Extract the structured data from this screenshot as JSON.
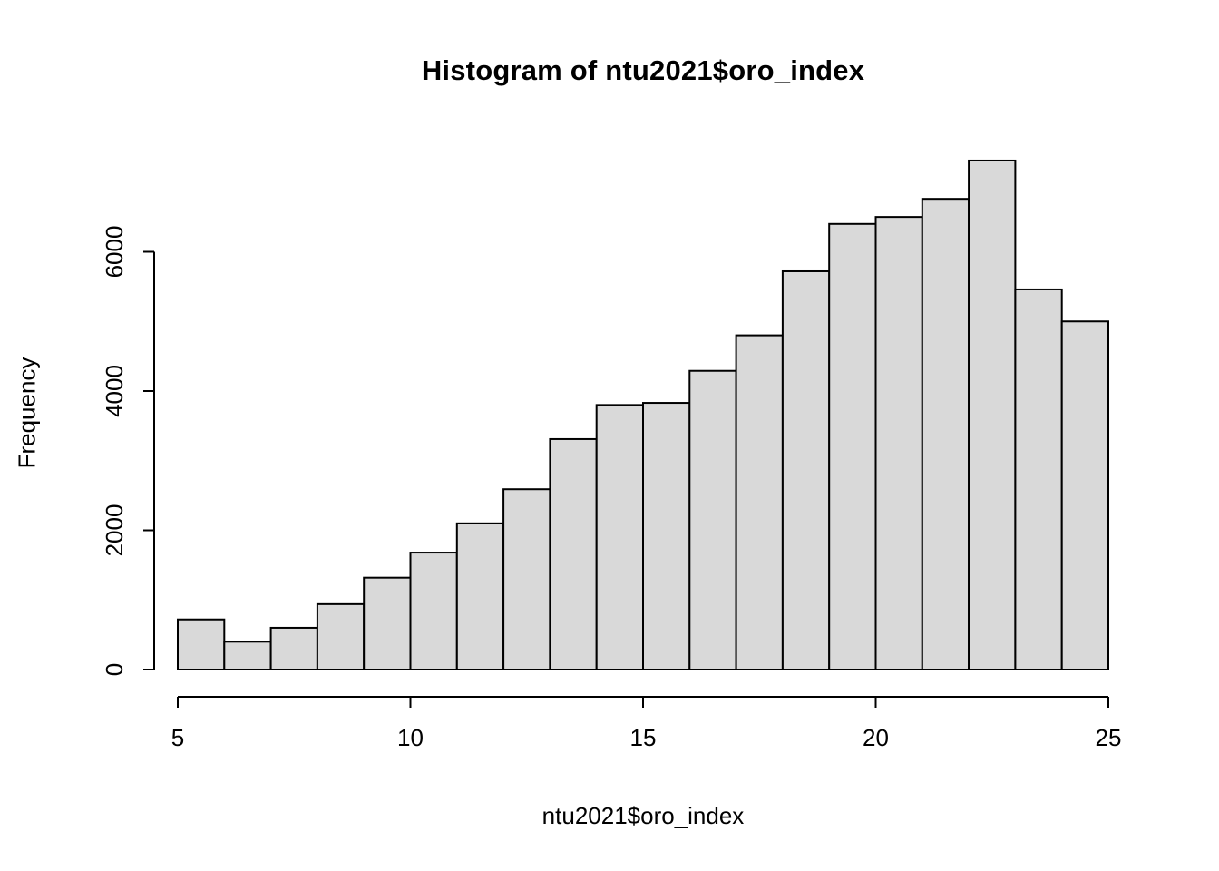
{
  "page": {
    "background": "#ffffff"
  },
  "chart_data": {
    "type": "bar",
    "chart_kind": "histogram",
    "title": "Histogram of ntu2021$oro_index",
    "xlabel": "ntu2021$oro_index",
    "ylabel": "Frequency",
    "bin_start": 5,
    "bin_width": 1,
    "values": [
      720,
      400,
      600,
      940,
      1320,
      1680,
      2100,
      2590,
      3310,
      3800,
      3830,
      4290,
      4800,
      5720,
      6400,
      6500,
      6760,
      7310,
      5460,
      5000
    ],
    "x_ticks": [
      5,
      10,
      15,
      20,
      25
    ],
    "y_ticks": [
      0,
      2000,
      4000,
      6000
    ],
    "xlim": [
      5,
      25
    ],
    "ylim": [
      0,
      7400
    ],
    "grid": false,
    "legend": false,
    "bar_fill": "#d9d9d9",
    "bar_stroke": "#000000",
    "axis_color": "#000000"
  }
}
